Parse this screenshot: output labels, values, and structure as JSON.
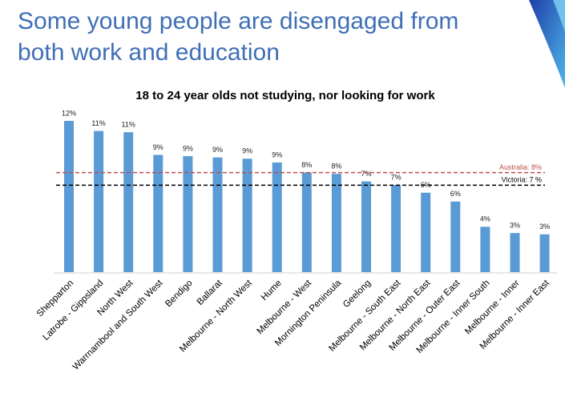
{
  "title_lines": [
    "Some young people are disengaged from",
    "both work and education"
  ],
  "chart_data": {
    "type": "bar",
    "title": "18 to 24 year olds not studying, nor looking for work",
    "categories": [
      "Shepparton",
      "Latrobe - Gippsland",
      "North West",
      "Warrnambool and South West",
      "Bendigo",
      "Ballarat",
      "Melbourne - North West",
      "Hume",
      "Melbourne - West",
      "Mornington Peninsula",
      "Geelong",
      "Melbourne - South East",
      "Melbourne - North East",
      "Melbourne - Outer East",
      "Melbourne - Inner South",
      "Melbourne - Inner",
      "Melbourne - Inner East"
    ],
    "values": [
      12.0,
      11.2,
      11.1,
      9.3,
      9.2,
      9.1,
      9.0,
      8.7,
      7.9,
      7.8,
      7.2,
      6.9,
      6.3,
      5.6,
      3.6,
      3.1,
      3.0
    ],
    "value_labels": [
      "12%",
      "11%",
      "11%",
      "9%",
      "9%",
      "9%",
      "9%",
      "9%",
      "8%",
      "8%",
      "7%",
      "7%",
      "6%",
      "6%",
      "4%",
      "3%",
      "3%"
    ],
    "color": "#5b9bd5",
    "reference_lines": [
      {
        "label": "Australia: 8%",
        "value": 7.9,
        "color": "#c0504d"
      },
      {
        "label": "Victoria: 7 %",
        "value": 6.9,
        "color": "#000000"
      }
    ]
  }
}
